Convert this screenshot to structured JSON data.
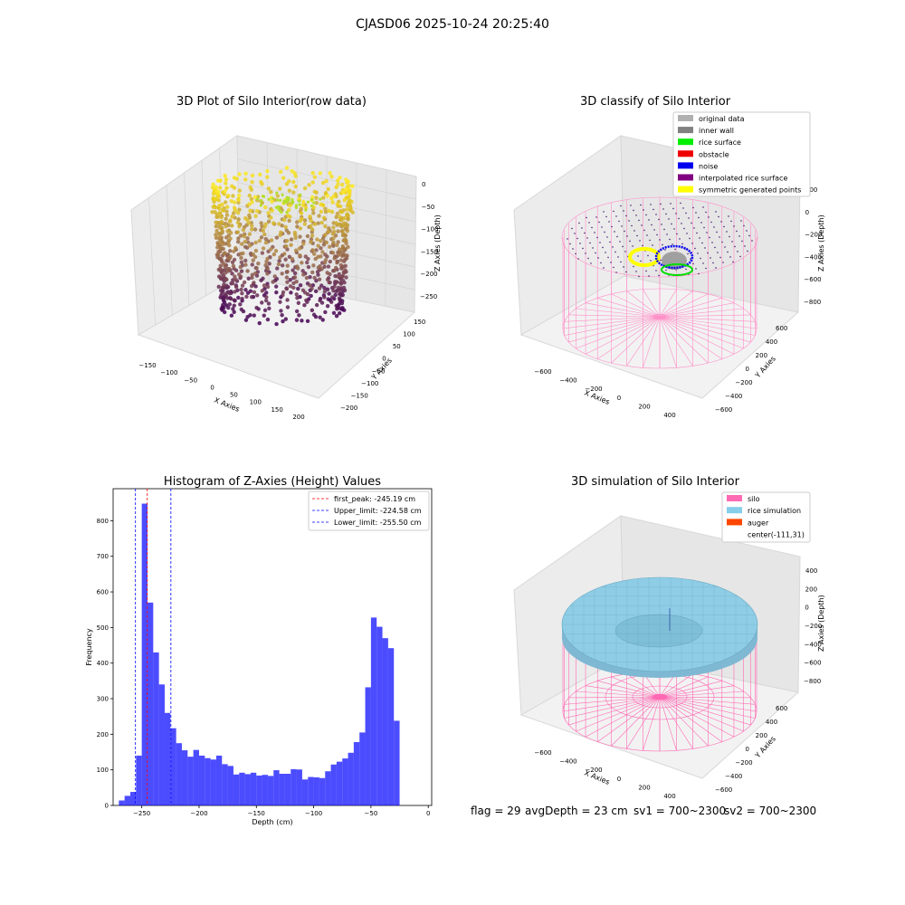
{
  "figure": {
    "suptitle": "CJASD06 2025-10-24 20:25:40"
  },
  "panels": {
    "raw": {
      "title": "3D Plot of Silo Interior(row data)",
      "xlabel": "X Axies",
      "ylabel": "Y Axies",
      "zlabel": "Z Axies (Depth)",
      "xticks": [
        "−150",
        "−100",
        "−50",
        "0",
        "50",
        "100",
        "150",
        "200"
      ],
      "yticks": [
        "150",
        "100",
        "50",
        "0",
        "−50",
        "−100",
        "−150",
        "−200"
      ],
      "zticks": [
        "0",
        "−50",
        "−100",
        "−150",
        "−200",
        "−250"
      ]
    },
    "classify": {
      "title": "3D classify of Silo Interior",
      "xlabel": "X Axies",
      "ylabel": "Y Axies",
      "zlabel": "Z Axies (Depth)",
      "xticks": [
        "−600",
        "−400",
        "−200",
        "0",
        "200",
        "400"
      ],
      "yticks": [
        "600",
        "400",
        "200",
        "0",
        "−200",
        "−400",
        "−600"
      ],
      "zticks": [
        "200",
        "0",
        "−200",
        "−400",
        "−600",
        "−800"
      ],
      "legend": [
        {
          "label": "original data",
          "color": "#b0b0b0"
        },
        {
          "label": "inner wall",
          "color": "#808080"
        },
        {
          "label": "rice surface",
          "color": "#00ee00"
        },
        {
          "label": "obstacle",
          "color": "#ee0000"
        },
        {
          "label": "noise",
          "color": "#0000ee"
        },
        {
          "label": "interpolated rice surface",
          "color": "#800080"
        },
        {
          "label": "symmetric generated points",
          "color": "#ffff00"
        }
      ]
    },
    "simulation": {
      "title": "3D simulation of Silo Interior",
      "xlabel": "X Axies",
      "ylabel": "Y Axies",
      "zlabel": "Z Axies (Depth)",
      "xticks": [
        "−600",
        "−400",
        "−200",
        "0",
        "200",
        "400"
      ],
      "yticks": [
        "600",
        "400",
        "200",
        "0",
        "−200",
        "−400",
        "−600"
      ],
      "zticks": [
        "400",
        "200",
        "0",
        "−200",
        "−400",
        "−600",
        "−800"
      ],
      "legend": [
        {
          "label": "silo",
          "color": "#ff69b4"
        },
        {
          "label": "rice simulation",
          "color": "#87ceeb"
        },
        {
          "label": "auger",
          "color": "#ff4500"
        },
        {
          "label": "center(-111,31)",
          "color": ""
        }
      ]
    }
  },
  "chart_data": {
    "type": "bar",
    "title": "Histogram of Z-Axies (Height) Values",
    "xlabel": "Depth (cm)",
    "ylabel": "Frequency",
    "xlim": [
      -275,
      3
    ],
    "ylim": [
      0,
      890
    ],
    "xticks": [
      -250,
      -200,
      -150,
      -100,
      -50,
      0
    ],
    "xtick_labels": [
      "−250",
      "−200",
      "−150",
      "−100",
      "−50",
      "0"
    ],
    "yticks": [
      0,
      100,
      200,
      300,
      400,
      500,
      600,
      700,
      800
    ],
    "bin_start": -270,
    "bin_width": 5,
    "values": [
      14,
      27,
      38,
      140,
      848,
      570,
      430,
      340,
      260,
      217,
      175,
      155,
      137,
      156,
      140,
      133,
      129,
      140,
      116,
      111,
      87,
      92,
      88,
      92,
      84,
      86,
      83,
      99,
      89,
      89,
      102,
      101,
      73,
      80,
      79,
      77,
      96,
      115,
      123,
      132,
      148,
      178,
      205,
      332,
      528,
      502,
      470,
      442,
      238
    ],
    "bar_color": "#0000ff",
    "vlines": [
      {
        "label": "first_peak: -245.19 cm",
        "x": -245.19,
        "color": "#ff0000"
      },
      {
        "label": "Upper_limit: -224.58 cm",
        "x": -224.58,
        "color": "#0000ff"
      },
      {
        "label": "Lower_limit: -255.50 cm",
        "x": -255.5,
        "color": "#0000ff"
      }
    ],
    "legend_position": "top-right"
  },
  "footer": {
    "flag": "flag = 29",
    "avg_depth": "avgDepth = 23 cm",
    "sv1": "sv1 = 700~2300",
    "sv2": "sv2 = 700~2300"
  }
}
